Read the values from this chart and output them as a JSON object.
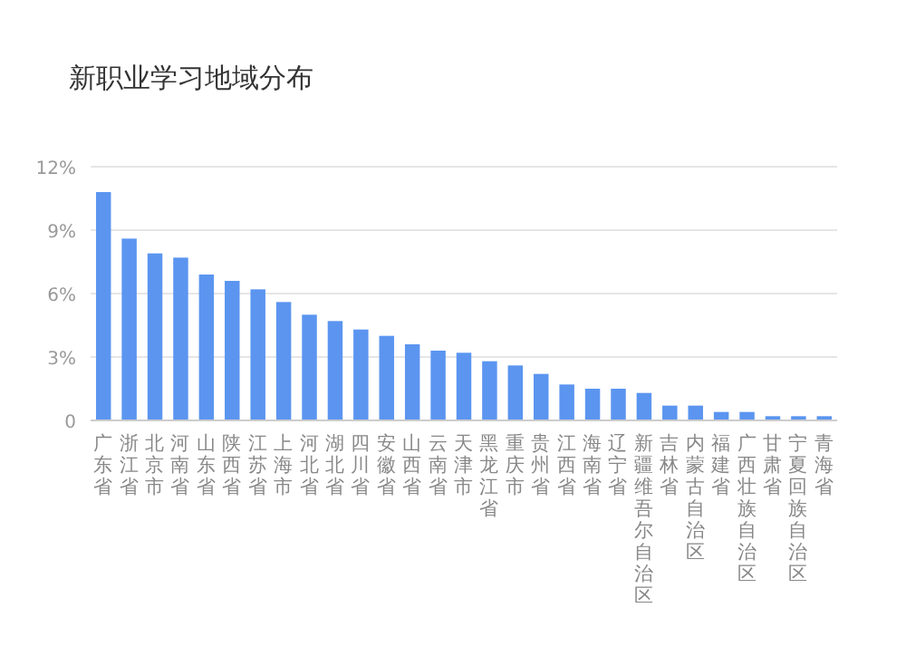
{
  "chart_data": {
    "type": "bar",
    "title": "新职业学习地域分布",
    "categories": [
      "广东省",
      "浙江省",
      "北京市",
      "河南省",
      "山东省",
      "陕西省",
      "江苏省",
      "上海市",
      "河北省",
      "湖北省",
      "四川省",
      "安徽省",
      "山西省",
      "云南省",
      "天津市",
      "黑龙江省",
      "重庆市",
      "贵州省",
      "江西省",
      "海南省",
      "辽宁省",
      "新疆维吾尔自治区",
      "吉林省",
      "内蒙古自治区",
      "福建省",
      "广西壮族自治区",
      "甘肃省",
      "宁夏回族自治区",
      "青海省"
    ],
    "values": [
      10.8,
      8.6,
      7.9,
      7.7,
      6.9,
      6.6,
      6.2,
      5.6,
      5.0,
      4.7,
      4.3,
      4.0,
      3.6,
      3.3,
      3.2,
      2.8,
      2.6,
      2.2,
      1.7,
      1.5,
      1.5,
      1.3,
      0.7,
      0.7,
      0.4,
      0.4,
      0.2,
      0.2,
      0.2
    ],
    "color": "#5b95f0",
    "ylim": [
      0,
      12
    ],
    "yticks": [
      {
        "value": 0,
        "label": "0"
      },
      {
        "value": 3,
        "label": "3%"
      },
      {
        "value": 6,
        "label": "6%"
      },
      {
        "value": 9,
        "label": "9%"
      },
      {
        "value": 12,
        "label": "12%"
      }
    ],
    "grid": "y"
  }
}
